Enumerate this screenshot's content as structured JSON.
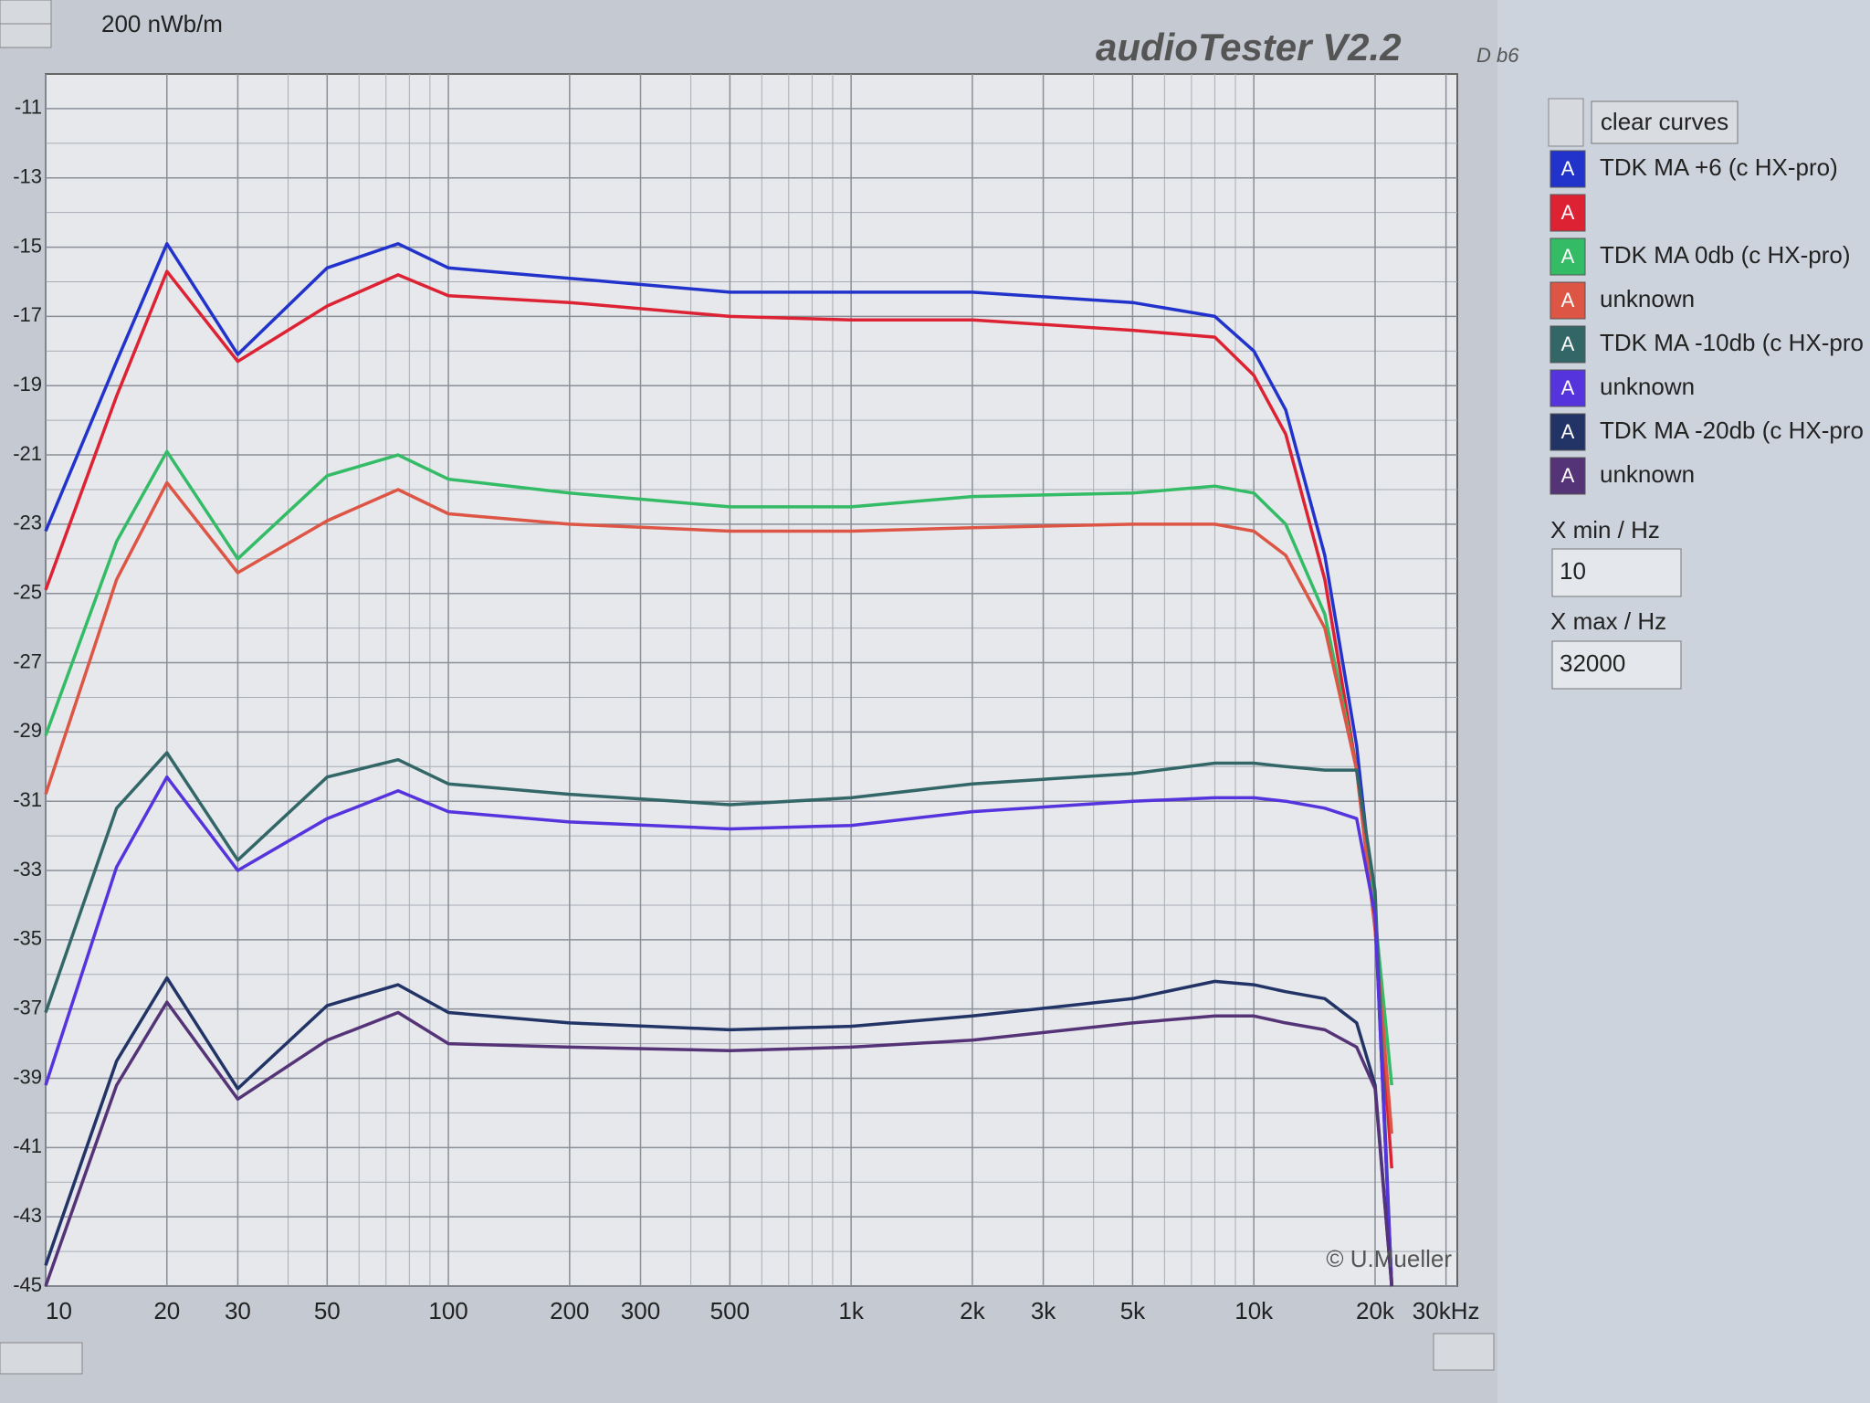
{
  "ui": {
    "scale_label": "200 nWb/m",
    "app_title": "audioTester V2.2",
    "app_build": "D b6",
    "clear_button": "clear curves",
    "curve_button_label": "A",
    "xmin_label": "X min / Hz",
    "xmax_label": "X max / Hz",
    "copyright": "© U.Mueller"
  },
  "chart_data": {
    "type": "line",
    "xscale": "log",
    "grid": true,
    "x": [
      10,
      15,
      20,
      30,
      50,
      75,
      100,
      200,
      500,
      1000,
      2000,
      5000,
      8000,
      10000,
      12000,
      15000,
      18000,
      20000,
      22000
    ],
    "xlim": [
      10,
      32000
    ],
    "xticks": [
      10,
      20,
      30,
      50,
      100,
      200,
      300,
      500,
      {
        "value": 1000,
        "label": "1k"
      },
      {
        "value": 2000,
        "label": "2k"
      },
      {
        "value": 3000,
        "label": "3k"
      },
      {
        "value": 5000,
        "label": "5k"
      },
      {
        "value": 10000,
        "label": "10k"
      },
      {
        "value": 20000,
        "label": "20k"
      },
      {
        "value": 30000,
        "label": "30kHz"
      }
    ],
    "x_minor_ticks": [
      40,
      60,
      70,
      80,
      90,
      400,
      600,
      700,
      800,
      900,
      4000,
      6000,
      7000,
      8000,
      9000
    ],
    "ylim": [
      -45,
      -10
    ],
    "yticks": [
      -11,
      -13,
      -15,
      -17,
      -19,
      -21,
      -23,
      -25,
      -27,
      -29,
      -31,
      -33,
      -35,
      -37,
      -39,
      -41,
      -43,
      -45
    ],
    "y_minor_ticks": [
      -12,
      -14,
      -16,
      -18,
      -20,
      -22,
      -24,
      -26,
      -28,
      -30,
      -32,
      -34,
      -36,
      -38,
      -40,
      -42,
      -44
    ],
    "series": [
      {
        "name": "TDK MA +6  (c HX-pro)",
        "color": "#2233cc",
        "values": [
          -23.2,
          -18.3,
          -14.9,
          -18.1,
          -15.6,
          -14.9,
          -15.6,
          -15.9,
          -16.3,
          -16.3,
          -16.3,
          -16.6,
          -17.0,
          -18.0,
          -19.7,
          -23.9,
          -29.4,
          -34.3,
          -45
        ]
      },
      {
        "color": "#dd2233",
        "values": [
          -24.9,
          -19.3,
          -15.7,
          -18.3,
          -16.7,
          -15.8,
          -16.4,
          -16.6,
          -17.0,
          -17.1,
          -17.1,
          -17.4,
          -17.6,
          -18.7,
          -20.4,
          -24.6,
          -30.1,
          -34.7,
          -41.6
        ]
      },
      {
        "name": "TDK MA 0db (c HX-pro)",
        "color": "#33bb66",
        "values": [
          -29.1,
          -23.5,
          -20.9,
          -24.0,
          -21.6,
          -21.0,
          -21.7,
          -22.1,
          -22.5,
          -22.5,
          -22.2,
          -22.1,
          -21.9,
          -22.1,
          -23.0,
          -25.6,
          -30.1,
          -34.3,
          -39.2
        ]
      },
      {
        "name": "unknown",
        "color": "#dd5544",
        "values": [
          -30.8,
          -24.6,
          -21.8,
          -24.4,
          -22.9,
          -22.0,
          -22.7,
          -23.0,
          -23.2,
          -23.2,
          -23.1,
          -23.0,
          -23.0,
          -23.2,
          -23.9,
          -26.0,
          -30.1,
          -34.7,
          -40.6
        ]
      },
      {
        "name": "TDK MA -10db (c HX-pro",
        "color": "#336666",
        "values": [
          -37.1,
          -31.2,
          -29.6,
          -32.7,
          -30.3,
          -29.8,
          -30.5,
          -30.8,
          -31.1,
          -30.9,
          -30.5,
          -30.2,
          -29.9,
          -29.9,
          -30.0,
          -30.1,
          -30.1,
          -33.6,
          -45
        ]
      },
      {
        "name": "unknown",
        "color": "#5533dd",
        "values": [
          -39.2,
          -32.9,
          -30.3,
          -33.0,
          -31.5,
          -30.7,
          -31.3,
          -31.6,
          -31.8,
          -31.7,
          -31.3,
          -31.0,
          -30.9,
          -30.9,
          -31.0,
          -31.2,
          -31.5,
          -34.3,
          -45
        ]
      },
      {
        "name": "TDK MA -20db (c HX-pro",
        "color": "#223366",
        "values": [
          -44.4,
          -38.5,
          -36.1,
          -39.3,
          -36.9,
          -36.3,
          -37.1,
          -37.4,
          -37.6,
          -37.5,
          -37.2,
          -36.7,
          -36.2,
          -36.3,
          -36.5,
          -36.7,
          -37.4,
          -39.2,
          -45
        ]
      },
      {
        "name": "unknown",
        "color": "#553377",
        "values": [
          -45,
          -39.2,
          -36.8,
          -39.6,
          -37.9,
          -37.1,
          -38.0,
          -38.1,
          -38.2,
          -38.1,
          -37.9,
          -37.4,
          -37.2,
          -37.2,
          -37.4,
          -37.6,
          -38.1,
          -39.3,
          -45
        ]
      }
    ]
  }
}
